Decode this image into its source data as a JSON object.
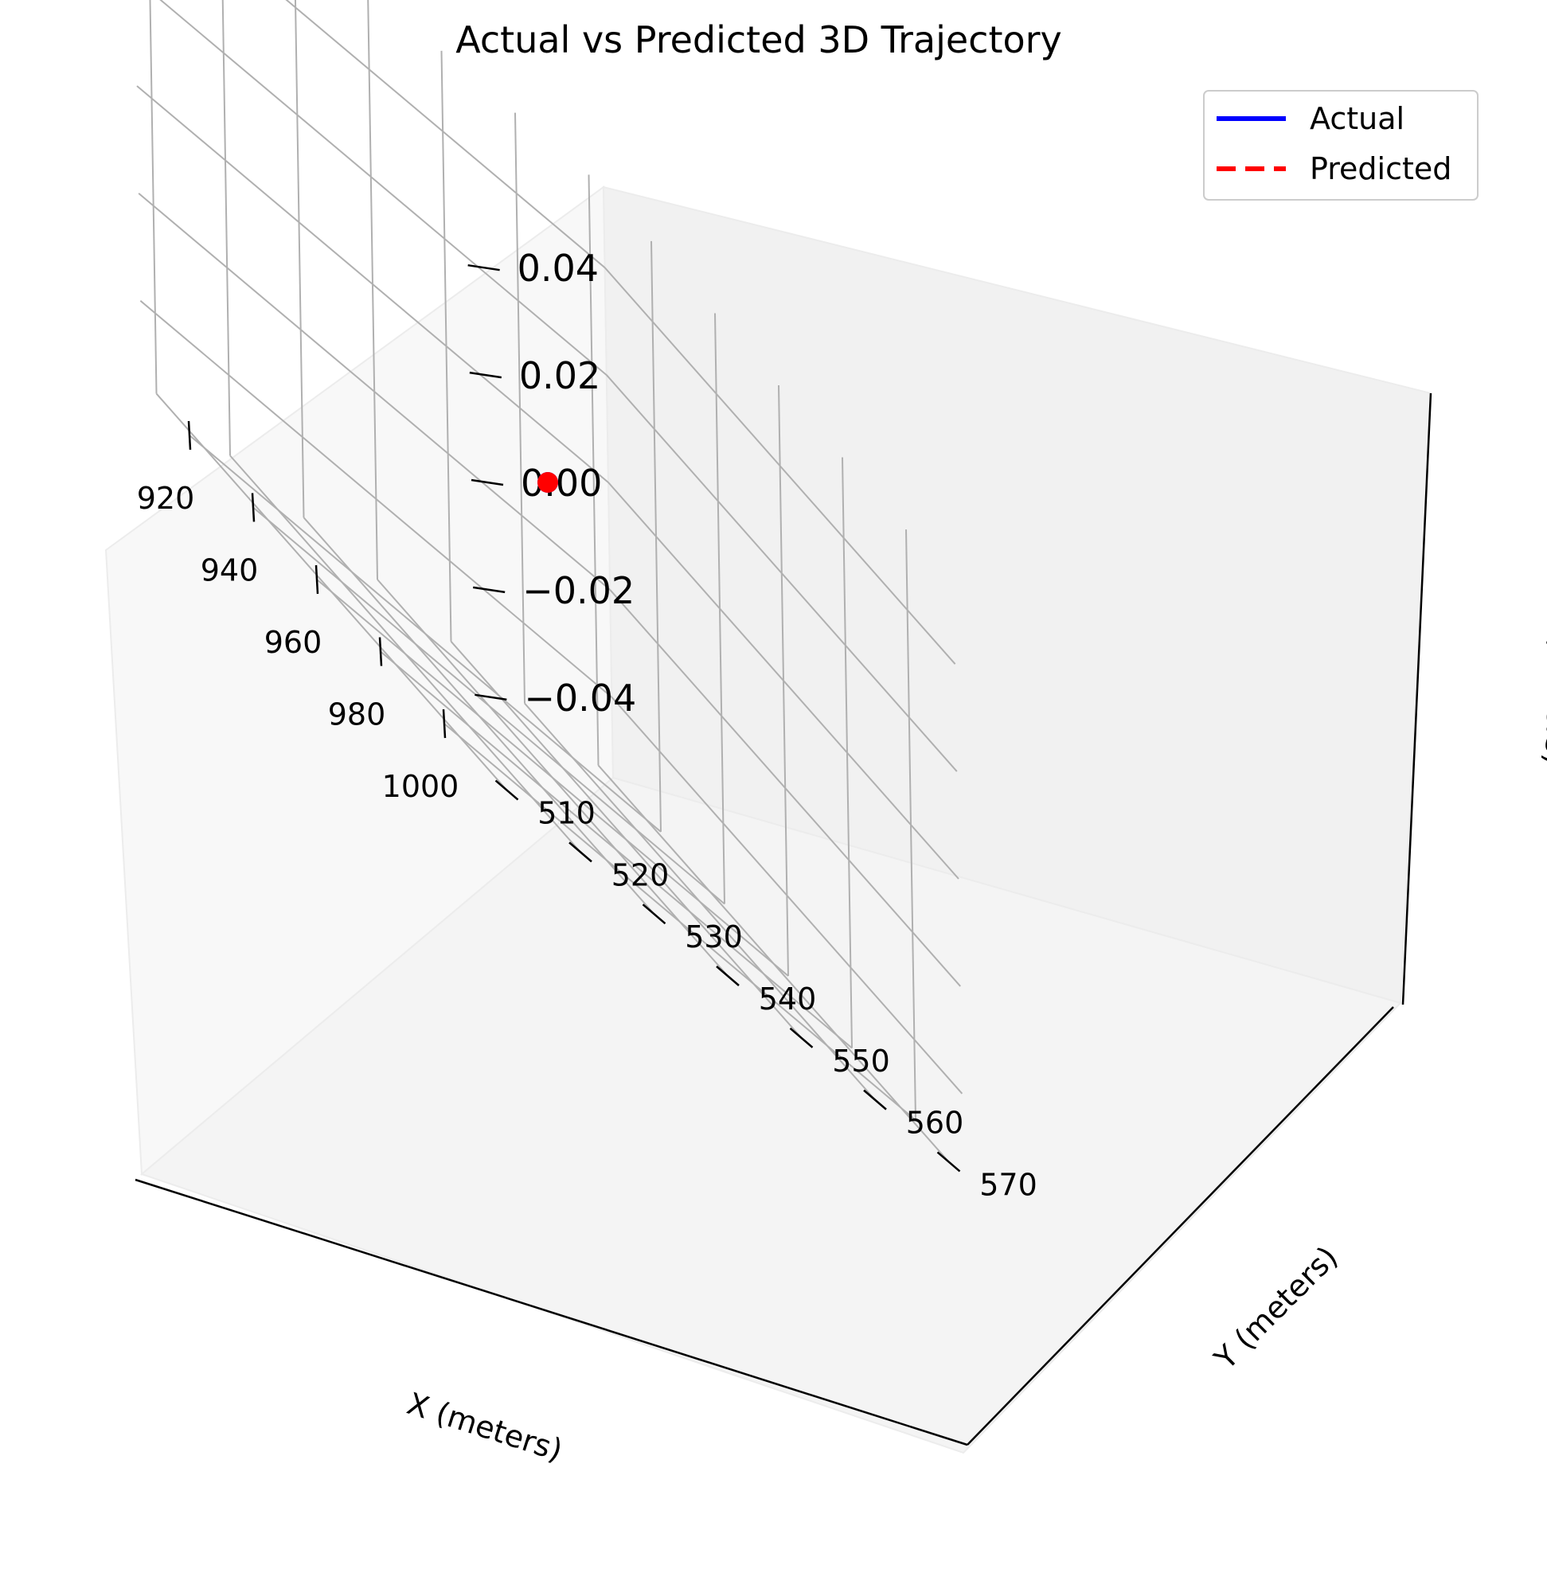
{
  "chart_data": {
    "type": "scatter",
    "title": "Actual vs Predicted 3D Trajectory",
    "xlabel": "X (meters)",
    "ylabel": "Y (meters)",
    "zlabel": "Z (meters)",
    "x_ticks": [
      "920",
      "940",
      "960",
      "980",
      "1000"
    ],
    "y_ticks": [
      "510",
      "520",
      "530",
      "540",
      "550",
      "560",
      "570"
    ],
    "z_ticks": [
      "0.04",
      "0.02",
      "0.00",
      "−0.02",
      "−0.04"
    ],
    "xlim": [
      905,
      1015
    ],
    "ylim": [
      508,
      572
    ],
    "zlim": [
      -0.055,
      0.055
    ],
    "grid": true,
    "legend_position": "top-right",
    "legend": [
      {
        "label": "Actual",
        "color": "#0000ff",
        "style": "solid"
      },
      {
        "label": "Predicted",
        "color": "#ff0000",
        "style": "dashed"
      }
    ],
    "series": [
      {
        "name": "Actual",
        "color": "#0000ff",
        "points": [
          {
            "x": 960,
            "y": 540,
            "z": 0.0
          }
        ]
      },
      {
        "name": "Predicted",
        "color": "#ff0000",
        "points": [
          {
            "x": 960,
            "y": 540,
            "z": 0.0
          }
        ]
      }
    ]
  }
}
